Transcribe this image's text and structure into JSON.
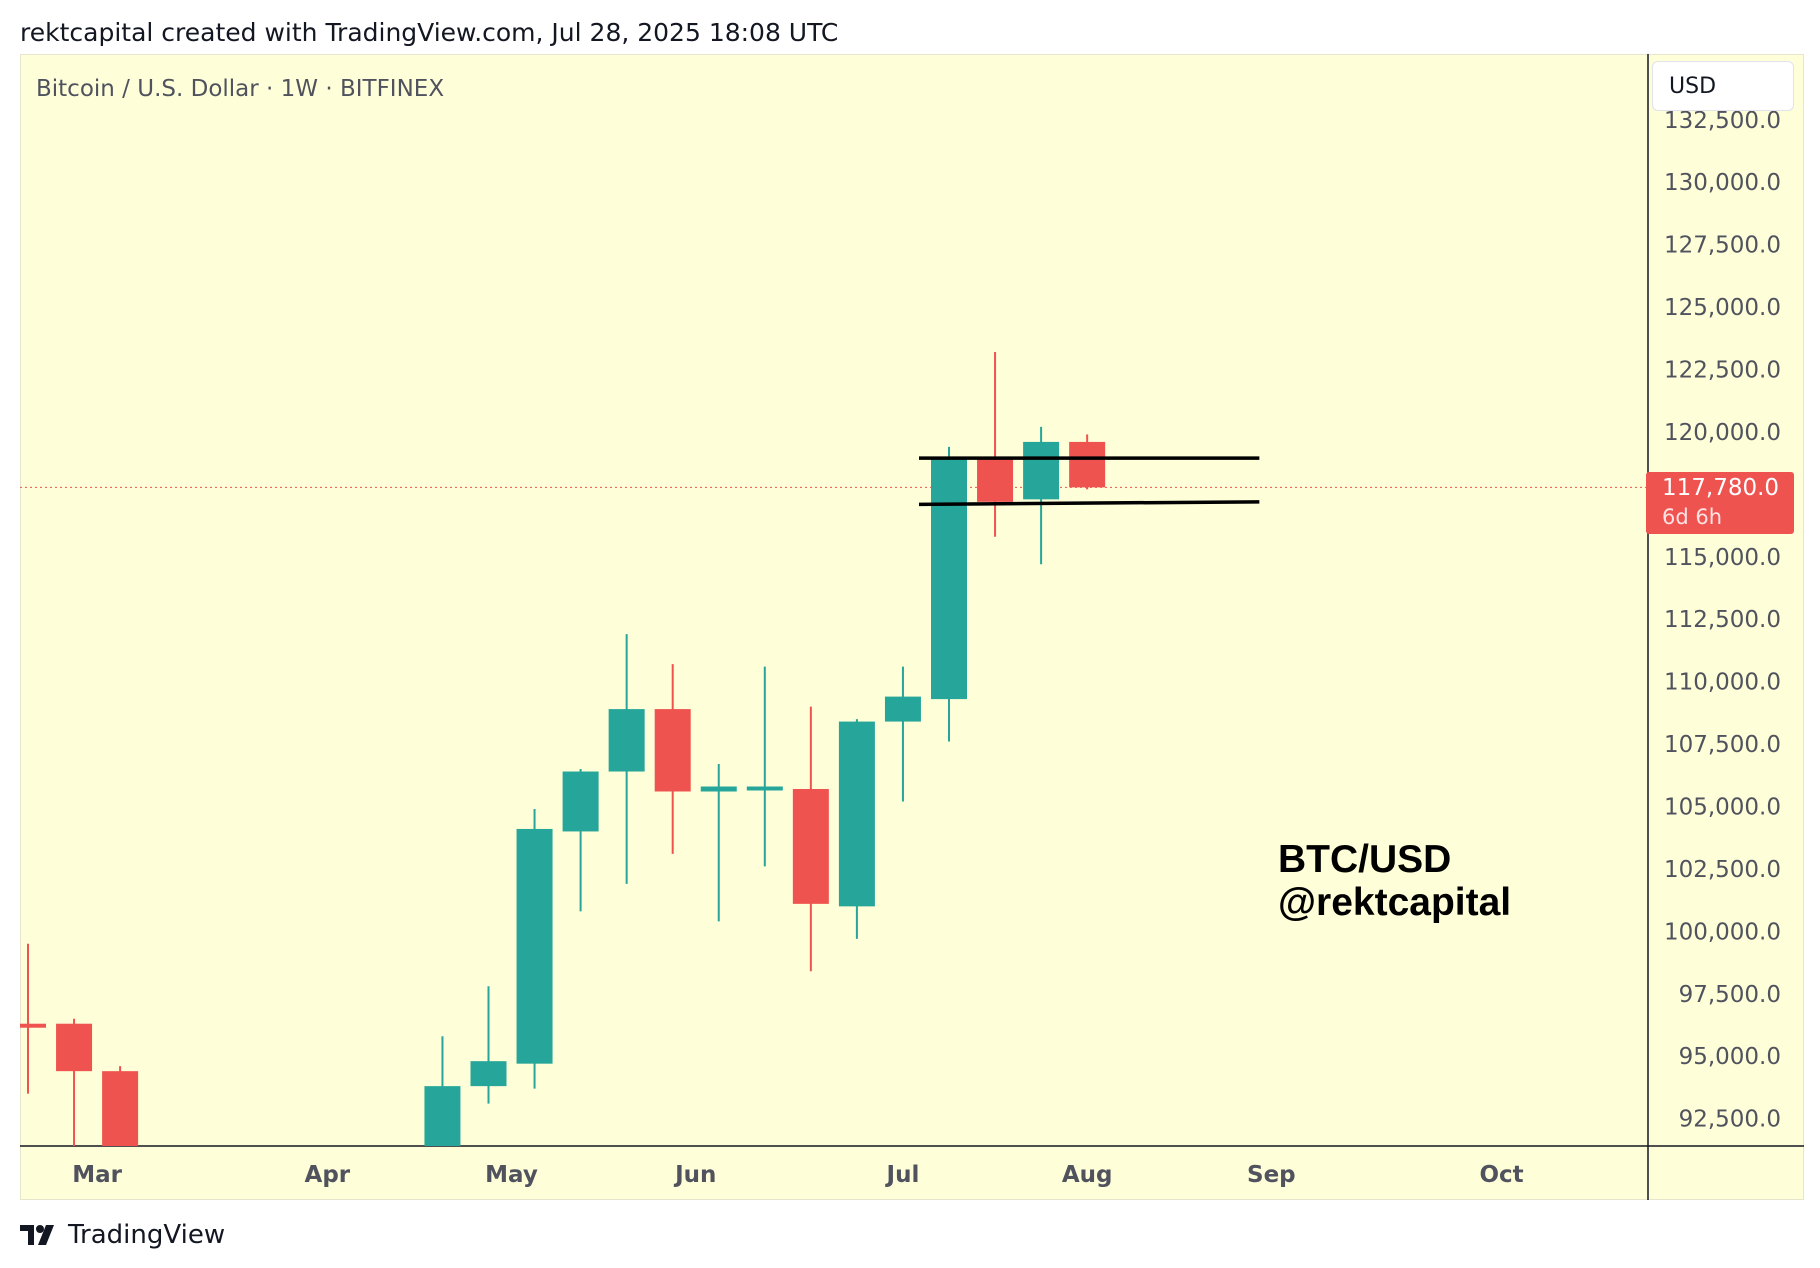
{
  "header": {
    "attribution": "rektcapital created with TradingView.com, Jul 28, 2025 18:08 UTC"
  },
  "chart": {
    "symbol_title": "Bitcoin / U.S. Dollar · 1W · BITFINEX",
    "currency": "USD",
    "watermark_line1": "BTC/USD",
    "watermark_line2": "@rektcapital",
    "last_price": "117,780.0",
    "countdown": "6d 6h"
  },
  "footer": {
    "brand": "TradingView",
    "logo_icon": "tradingview-logo-icon"
  },
  "colors": {
    "background": "#fefed8",
    "up": "#26a69a",
    "down": "#ef5350",
    "axis_text": "#50535e",
    "level_lines": "#000000"
  },
  "chart_data": {
    "type": "candlestick",
    "timeframe": "1W",
    "ylim": [
      91000,
      134000
    ],
    "y_tick_labels": [
      "92,500.0",
      "95,000.0",
      "97,500.0",
      "100,000.0",
      "102,500.0",
      "105,000.0",
      "107,500.0",
      "110,000.0",
      "112,500.0",
      "115,000.0",
      "117,500.0",
      "120,000.0",
      "122,500.0",
      "125,000.0",
      "127,500.0",
      "130,000.0",
      "132,500.0"
    ],
    "y_tick_values": [
      92500,
      95000,
      97500,
      100000,
      102500,
      105000,
      107500,
      110000,
      112500,
      115000,
      117500,
      120000,
      122500,
      125000,
      127500,
      130000,
      132500
    ],
    "x_tick_labels": [
      "Mar",
      "Apr",
      "May",
      "Jun",
      "Jul",
      "Aug",
      "Sep",
      "Oct"
    ],
    "x_tick_week_index": [
      1.5,
      6.5,
      10.5,
      14.5,
      19,
      23,
      27,
      32
    ],
    "candles": [
      {
        "w": 0,
        "o": 96300,
        "h": 99500,
        "l": 93500,
        "c": 96200
      },
      {
        "w": 1,
        "o": 96300,
        "h": 96500,
        "l": 91000,
        "c": 94400
      },
      {
        "w": 2,
        "o": 94400,
        "h": 94600,
        "l": 91000,
        "c": 91000
      },
      {
        "w": 9,
        "o": 91000,
        "h": 95800,
        "l": 91000,
        "c": 93800
      },
      {
        "w": 10,
        "o": 93800,
        "h": 97800,
        "l": 93100,
        "c": 94800
      },
      {
        "w": 11,
        "o": 94700,
        "h": 104900,
        "l": 93700,
        "c": 104100
      },
      {
        "w": 12,
        "o": 104000,
        "h": 106500,
        "l": 100800,
        "c": 106400
      },
      {
        "w": 13,
        "o": 106400,
        "h": 111900,
        "l": 101900,
        "c": 108900
      },
      {
        "w": 14,
        "o": 108900,
        "h": 110700,
        "l": 103100,
        "c": 105600
      },
      {
        "w": 15,
        "o": 105600,
        "h": 106700,
        "l": 100400,
        "c": 105800
      },
      {
        "w": 16,
        "o": 105800,
        "h": 110600,
        "l": 102600,
        "c": 105800
      },
      {
        "w": 17,
        "o": 105700,
        "h": 109000,
        "l": 98400,
        "c": 101100
      },
      {
        "w": 18,
        "o": 101000,
        "h": 108500,
        "l": 99700,
        "c": 108400
      },
      {
        "w": 19,
        "o": 108400,
        "h": 110600,
        "l": 105200,
        "c": 109400
      },
      {
        "w": 20,
        "o": 109300,
        "h": 119400,
        "l": 107600,
        "c": 119000
      },
      {
        "w": 21,
        "o": 118900,
        "h": 123200,
        "l": 115800,
        "c": 117200
      },
      {
        "w": 22,
        "o": 117300,
        "h": 120200,
        "l": 114700,
        "c": 119600
      },
      {
        "w": 23,
        "o": 119600,
        "h": 119900,
        "l": 117700,
        "c": 117780
      }
    ],
    "horizontal_levels": [
      {
        "from_week": 20,
        "to_week": 27,
        "y_start": 118950,
        "y_end": 118950
      },
      {
        "from_week": 20,
        "to_week": 27,
        "y_start": 117100,
        "y_end": 117200
      }
    ],
    "last_price_value": 117780
  }
}
